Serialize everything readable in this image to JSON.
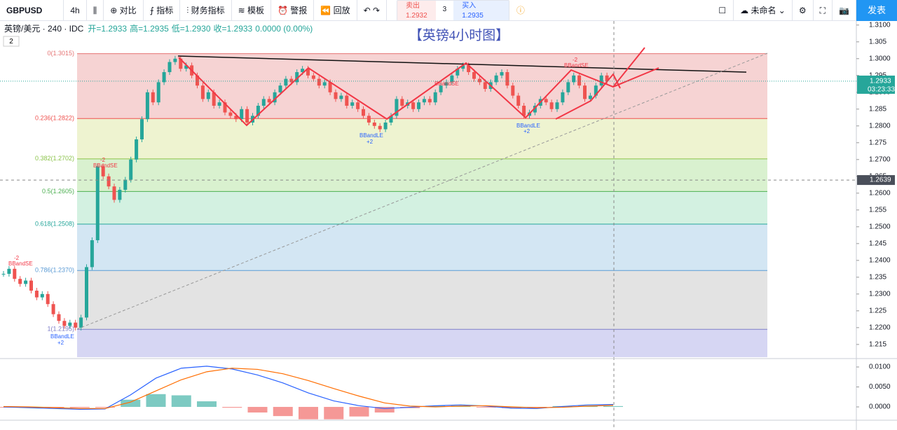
{
  "toolbar": {
    "symbol": "GBPUSD",
    "interval": "4h",
    "items": [
      "对比",
      "指标",
      "财务指标",
      "模板",
      "警报",
      "回放"
    ],
    "sell_label": "卖出",
    "sell_price": "1.2932",
    "spread": "3",
    "buy_label": "买入",
    "buy_price": "1.2935",
    "layout_name": "未命名",
    "publish": "发表"
  },
  "header": {
    "pair": "英镑/美元 · 240 · IDC",
    "open": "开=1.2933",
    "high": "高=1.2935",
    "low": "低=1.2930",
    "close": "收=1.2933",
    "change": "0.0000 (0.00%)",
    "pane_count": "2"
  },
  "chart_data": {
    "type": "candlestick",
    "title": "【英镑4小时图】",
    "ylim": [
      1.2108,
      1.3112
    ],
    "yticks": [
      {
        "value": 1.31,
        "label": "1.3100"
      },
      1.305,
      {
        "value": 1.3,
        "label": "1.3000"
      },
      1.295,
      {
        "value": 1.29,
        "label": "1.2900"
      },
      1.285,
      {
        "value": 1.28,
        "label": "1.2800"
      },
      1.275,
      {
        "value": 1.27,
        "label": "1.2700"
      },
      1.265,
      {
        "value": 1.26,
        "label": "1.2600"
      },
      1.255,
      {
        "value": 1.25,
        "label": "1.2500"
      },
      1.245,
      {
        "value": 1.24,
        "label": "1.2400"
      },
      1.235,
      {
        "value": 1.23,
        "label": "1.2300"
      },
      1.225,
      {
        "value": 1.22,
        "label": "1.2200"
      },
      1.215
    ],
    "up_color": "#26a69a",
    "down_color": "#ef5350",
    "closes": [
      1.236,
      1.2375,
      1.2345,
      1.233,
      1.234,
      1.231,
      1.229,
      1.23,
      1.227,
      1.224,
      1.222,
      1.2205,
      1.2215,
      1.22,
      1.223,
      1.238,
      1.246,
      1.268,
      1.265,
      1.262,
      1.258,
      1.261,
      1.264,
      1.27,
      1.276,
      1.282,
      1.29,
      1.287,
      1.293,
      1.296,
      1.299,
      1.3,
      1.297,
      1.298,
      1.295,
      1.292,
      1.288,
      1.29,
      1.286,
      1.287,
      1.284,
      1.283,
      1.282,
      1.285,
      1.281,
      1.283,
      1.286,
      1.288,
      1.287,
      1.29,
      1.292,
      1.294,
      1.293,
      1.296,
      1.297,
      1.295,
      1.294,
      1.292,
      1.293,
      1.29,
      1.288,
      1.289,
      1.286,
      1.287,
      1.285,
      1.283,
      1.281,
      1.28,
      1.279,
      1.281,
      1.283,
      1.288,
      1.286,
      1.287,
      1.285,
      1.287,
      1.288,
      1.287,
      1.29,
      1.292,
      1.293,
      1.295,
      1.297,
      1.298,
      1.296,
      1.294,
      1.293,
      1.291,
      1.293,
      1.295,
      1.296,
      1.292,
      1.289,
      1.286,
      1.283,
      1.284,
      1.286,
      1.288,
      1.287,
      1.285,
      1.287,
      1.29,
      1.293,
      1.295,
      1.292,
      1.288,
      1.289,
      1.292,
      1.295,
      1.2933
    ],
    "fib": [
      {
        "label": "0(1.3015)",
        "price": 1.3015,
        "fill": "#f6d3d3",
        "line": "#e57373"
      },
      {
        "label": "0.236(1.2822)",
        "price": 1.2822,
        "fill": "#eef3d0",
        "line": "#ef5350"
      },
      {
        "label": "0.382(1.2702)",
        "price": 1.2702,
        "fill": "#d9f1cf",
        "line": "#8bc34a"
      },
      {
        "label": "0.5(1.2605)",
        "price": 1.2605,
        "fill": "#d3f1e1",
        "line": "#4caf50"
      },
      {
        "label": "0.618(1.2508)",
        "price": 1.2508,
        "fill": "#d3e6f3",
        "line": "#26a69a"
      },
      {
        "label": "0.786(1.2370)",
        "price": 1.237,
        "fill": "#e3e3e3",
        "line": "#5b9bd5"
      },
      {
        "label": "1(1.2195)",
        "price": 1.2195,
        "fill": "#d6d6f3",
        "line": "#7e7ec8"
      }
    ],
    "last_price": {
      "value": 1.2933,
      "label": "1.2933",
      "countdown": "03:23:33"
    },
    "crosshair": {
      "value": 1.2639,
      "label": "1.2639"
    },
    "indicator": {
      "ylim": [
        -0.00333,
        0.01158
      ],
      "yticks": [
        {
          "value": 0.01,
          "label": "0.0100"
        },
        {
          "value": 0.005,
          "label": "0.0050"
        },
        {
          "value": 0,
          "label": "0.0000"
        }
      ],
      "macd": [
        0.0,
        -0.0002,
        -0.0004,
        -0.0006,
        -0.0005,
        0.003,
        0.0072,
        0.0097,
        0.0102,
        0.0095,
        0.008,
        0.006,
        0.0035,
        0.0015,
        0.0003,
        -0.0004,
        -0.0001,
        0.0003,
        0.0005,
        0.0002,
        -0.0003,
        -0.0004,
        0.0001,
        0.0005,
        0.0006
      ],
      "signal": [
        0.0001,
        0.0,
        -0.0002,
        -0.0004,
        -0.0004,
        0.0012,
        0.004,
        0.0068,
        0.0088,
        0.0097,
        0.0094,
        0.0083,
        0.0066,
        0.0046,
        0.0027,
        0.001,
        0.0002,
        0.0,
        0.0002,
        0.0003,
        0.0,
        -0.0002,
        -0.0001,
        0.0002,
        0.0004
      ],
      "macd_color": "#2962ff",
      "signal_color": "#ff6d00"
    }
  },
  "signals": [
    {
      "label": "BBandSE",
      "count": "-2"
    },
    {
      "label": "BBandLE",
      "count": "+2"
    },
    {
      "label": "BBandSE",
      "count": "-2"
    },
    {
      "label": "BBandLE",
      "count": "+2"
    },
    {
      "label": "BBandSE",
      "count": "-2"
    },
    {
      "label": "BBandLE",
      "count": "+2"
    },
    {
      "label": "BBandSE",
      "count": "-2"
    }
  ]
}
